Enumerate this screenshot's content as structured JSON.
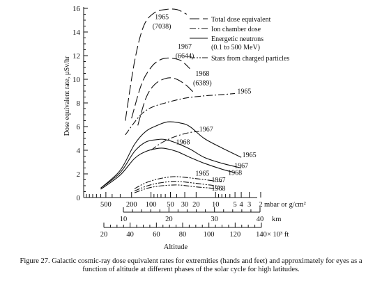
{
  "chart_data": {
    "type": "line",
    "ylabel": "Dose equivalent rate, µSv/hr",
    "ylim": [
      0,
      16
    ],
    "y_ticks": [
      "0",
      "2",
      "4",
      "6",
      "8",
      "10",
      "12",
      "14",
      "16"
    ],
    "x_axes": [
      {
        "name": "pressure",
        "unit_label": "mbar or g/cm²",
        "range": [
          1000,
          2.5
        ],
        "scale": "log",
        "tick_labels": [
          {
            "label": "500",
            "value": 500
          },
          {
            "label": "200",
            "value": 200
          },
          {
            "label": "100",
            "value": 100
          },
          {
            "label": "50",
            "value": 50
          },
          {
            "label": "30",
            "value": 30
          },
          {
            "label": "20",
            "value": 20
          },
          {
            "label": "10",
            "value": 10
          },
          {
            "label": "5",
            "value": 5
          },
          {
            "label": "4",
            "value": 4
          },
          {
            "label": "3",
            "value": 3
          },
          {
            "label": "2",
            "value": 2
          }
        ]
      },
      {
        "name": "altitude-km",
        "unit_label": "km",
        "range": [
          10,
          40
        ],
        "tick_labels": [
          {
            "label": "10",
            "value": 10
          },
          {
            "label": "20",
            "value": 20
          },
          {
            "label": "30",
            "value": 30
          },
          {
            "label": "40",
            "value": 40
          }
        ]
      },
      {
        "name": "altitude-ft",
        "unit_label": "× 10³ ft",
        "range": [
          20,
          140
        ],
        "tick_labels": [
          {
            "label": "20",
            "value": 20
          },
          {
            "label": "40",
            "value": 40
          },
          {
            "label": "60",
            "value": 60
          },
          {
            "label": "80",
            "value": 80
          },
          {
            "label": "100",
            "value": 100
          },
          {
            "label": "120",
            "value": 120
          },
          {
            "label": "140",
            "value": 140
          }
        ]
      }
    ],
    "xlabel": "Altitude",
    "legend": {
      "placement": "top-right",
      "entries": [
        {
          "label": "Total dose equivalent",
          "style": "long-dash"
        },
        {
          "label": "Ion chamber dose",
          "style": "dash-dot"
        },
        {
          "label": "Energetic neutrons (0.1 to 500 MeV)",
          "style": "solid"
        },
        {
          "label": "Stars from charged particles",
          "style": "dash-dot-dot"
        }
      ]
    },
    "series": [
      {
        "group": "Total dose equivalent",
        "style": "long-dash",
        "points": [
          [
            250,
            6.5
          ],
          [
            180,
            11.5
          ],
          [
            130,
            14.5
          ],
          [
            90,
            15.6
          ],
          [
            60,
            15.9
          ],
          [
            40,
            15.9
          ],
          [
            28,
            15.5
          ]
        ]
      },
      {
        "group": "Total dose equivalent",
        "style": "long-dash",
        "points": [
          [
            200,
            6.7
          ],
          [
            140,
            9.6
          ],
          [
            100,
            11.0
          ],
          [
            75,
            11.6
          ],
          [
            55,
            11.8
          ],
          [
            35,
            11.6
          ],
          [
            25,
            10.9
          ]
        ]
      },
      {
        "group": "Total dose equivalent",
        "style": "long-dash",
        "points": [
          [
            160,
            6.1
          ],
          [
            120,
            8.4
          ],
          [
            90,
            9.5
          ],
          [
            65,
            10.0
          ],
          [
            45,
            10.1
          ],
          [
            30,
            9.6
          ],
          [
            22,
            8.9
          ]
        ]
      },
      {
        "group": "Ion chamber dose",
        "style": "dash-dot",
        "points": [
          [
            250,
            5.3
          ],
          [
            150,
            6.9
          ],
          [
            100,
            7.6
          ],
          [
            60,
            8.0
          ],
          [
            30,
            8.4
          ],
          [
            15,
            8.6
          ],
          [
            8,
            8.7
          ],
          [
            5,
            8.8
          ]
        ]
      },
      {
        "group": "Ion chamber dose",
        "style": "dash-dot",
        "points": [
          [
            100,
            4.0
          ],
          [
            70,
            4.6
          ],
          [
            50,
            5.0
          ],
          [
            35,
            5.3
          ],
          [
            25,
            5.5
          ],
          [
            18,
            5.6
          ]
        ]
      },
      {
        "group": "Energetic neutrons (0.1 to 500 MeV)",
        "style": "solid",
        "points": [
          [
            600,
            0.8
          ],
          [
            300,
            2.3
          ],
          [
            180,
            4.5
          ],
          [
            120,
            5.6
          ],
          [
            80,
            6.1
          ],
          [
            55,
            6.4
          ],
          [
            35,
            6.3
          ],
          [
            25,
            6.0
          ],
          [
            15,
            5.0
          ],
          [
            8,
            4.2
          ],
          [
            4,
            3.4
          ]
        ]
      },
      {
        "group": "Energetic neutrons (0.1 to 500 MeV)",
        "style": "solid",
        "points": [
          [
            600,
            0.8
          ],
          [
            300,
            2.1
          ],
          [
            180,
            3.9
          ],
          [
            120,
            4.7
          ],
          [
            80,
            4.9
          ],
          [
            60,
            4.9
          ],
          [
            40,
            4.6
          ],
          [
            25,
            4.1
          ],
          [
            15,
            3.4
          ],
          [
            8,
            2.9
          ],
          [
            4,
            2.5
          ]
        ]
      },
      {
        "group": "Energetic neutrons (0.1 to 500 MeV)",
        "style": "solid",
        "points": [
          [
            600,
            0.7
          ],
          [
            300,
            1.9
          ],
          [
            180,
            3.3
          ],
          [
            120,
            3.9
          ],
          [
            80,
            4.15
          ],
          [
            60,
            4.15
          ],
          [
            40,
            3.9
          ],
          [
            25,
            3.4
          ],
          [
            15,
            2.9
          ],
          [
            8,
            2.4
          ],
          [
            5,
            2.1
          ]
        ]
      },
      {
        "group": "Stars from charged particles",
        "style": "dash-dot-dot",
        "points": [
          [
            180,
            0.75
          ],
          [
            120,
            1.25
          ],
          [
            80,
            1.55
          ],
          [
            50,
            1.75
          ],
          [
            35,
            1.75
          ],
          [
            20,
            1.6
          ],
          [
            12,
            1.45
          ],
          [
            8,
            1.35
          ]
        ]
      },
      {
        "group": "Stars from charged particles",
        "style": "dash-dot-dot",
        "points": [
          [
            180,
            0.55
          ],
          [
            120,
            0.95
          ],
          [
            80,
            1.2
          ],
          [
            50,
            1.35
          ],
          [
            35,
            1.35
          ],
          [
            20,
            1.2
          ],
          [
            12,
            1.05
          ],
          [
            8,
            0.95
          ]
        ]
      },
      {
        "group": "Stars from charged particles",
        "style": "dash-dot-dot",
        "points": [
          [
            180,
            0.4
          ],
          [
            120,
            0.75
          ],
          [
            80,
            0.95
          ],
          [
            50,
            1.05
          ],
          [
            35,
            1.05
          ],
          [
            20,
            0.9
          ],
          [
            12,
            0.8
          ],
          [
            8,
            0.7
          ]
        ]
      }
    ],
    "annotations": [
      {
        "text": "1965",
        "x": 68,
        "y": 15.1
      },
      {
        "text": "(7038)",
        "x": 68,
        "y": 14.3
      },
      {
        "text": "1967",
        "x": 30,
        "y": 12.6
      },
      {
        "text": "(6644)",
        "x": 30,
        "y": 11.8
      },
      {
        "text": "1968",
        "x": 16,
        "y": 10.3
      },
      {
        "text": "(6389)",
        "x": 16,
        "y": 9.5
      },
      {
        "text": "1965",
        "x": 3.6,
        "y": 8.8
      },
      {
        "text": "1967",
        "x": 14,
        "y": 5.6
      },
      {
        "text": "1968",
        "x": 32,
        "y": 4.5
      },
      {
        "text": "1965",
        "x": 3.0,
        "y": 3.4
      },
      {
        "text": "1967",
        "x": 4.0,
        "y": 2.5
      },
      {
        "text": "1968",
        "x": 5.0,
        "y": 1.9
      },
      {
        "text": "1965",
        "x": 16,
        "y": 1.85
      },
      {
        "text": "1967",
        "x": 9,
        "y": 1.3
      },
      {
        "text": "1968",
        "x": 9,
        "y": 0.6
      }
    ]
  },
  "caption": {
    "line1": "Figure 27.  Galactic cosmic-ray dose equivalent rates for extremities (hands and feet) and approximately for eyes as a",
    "line2": "function of altitude at different phases of the solar cycle for high latitudes."
  }
}
